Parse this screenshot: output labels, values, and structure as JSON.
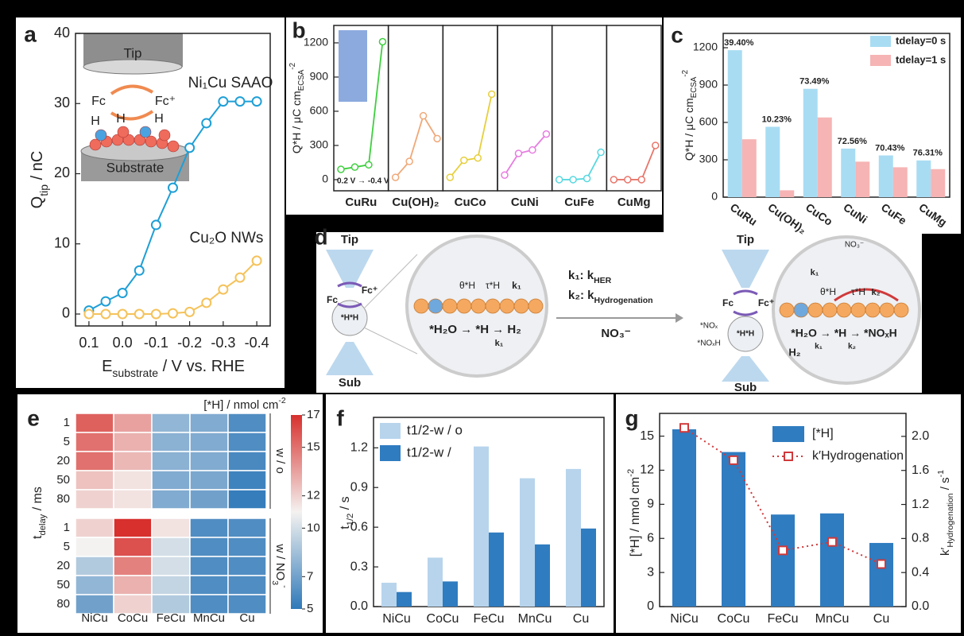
{
  "panel_labels": [
    "a",
    "b",
    "c",
    "d",
    "e",
    "f",
    "g"
  ],
  "chart_data": [
    {
      "type": "line",
      "xlabel": [
        {
          "t": "E"
        },
        {
          "t": "substrate",
          "sub": true
        },
        {
          "t": " / V vs. RHE"
        }
      ],
      "ylabel": [
        {
          "t": "Q"
        },
        {
          "t": "tip",
          "sub": true
        },
        {
          "t": " / nC"
        }
      ],
      "x": [
        0.1,
        0.05,
        0,
        -0.05,
        -0.1,
        -0.15,
        -0.2,
        -0.25,
        -0.3,
        -0.35,
        -0.4
      ],
      "series": [
        {
          "name": "Ni₁Cu SAAO",
          "color": "#1e9fd6",
          "values": [
            0.5,
            1.8,
            3,
            6.2,
            12.7,
            18,
            23.7,
            27.2,
            30.3,
            30.3,
            30.3
          ]
        },
        {
          "name": "Cu₂O NWs",
          "color": "#f5c25a",
          "values": [
            0,
            0,
            0,
            0,
            0,
            0.1,
            0.3,
            1.6,
            3.5,
            5.2,
            7.6
          ]
        }
      ],
      "xlim": [
        0.14,
        -0.44
      ],
      "ylim": [
        -1.7,
        40
      ],
      "xticks": [
        0.1,
        {
          "value": 0,
          "label": "0.0"
        },
        -0.1,
        -0.2,
        -0.3,
        -0.4
      ],
      "yticks": [
        0,
        10,
        20,
        30,
        40
      ],
      "inset_labels": [
        "Tip",
        "Fc",
        "Fc⁺",
        "H",
        "H",
        "H",
        "Substrate"
      ]
    },
    {
      "type": "small_multiples",
      "ylabel": [
        {
          "t": "Q*H / μC cm"
        },
        {
          "t": "ECSA",
          "sub": true
        },
        {
          "t": "-2",
          "sup": true
        }
      ],
      "ylim": [
        -98,
        1353
      ],
      "yticks": [
        0,
        300,
        600,
        900,
        1200
      ],
      "xlim": [
        -0.4,
        3.3
      ],
      "series": [
        {
          "name": "CuRu",
          "color": "#3fcf3f",
          "values": [
            90,
            110,
            130,
            1210
          ]
        },
        {
          "name": "Cu(OH)₂",
          "color": "#f0a878",
          "values": [
            20,
            160,
            560,
            360
          ]
        },
        {
          "name": "CuCo",
          "color": "#e6cf3c",
          "values": [
            20,
            170,
            190,
            750
          ]
        },
        {
          "name": "CuNi",
          "color": "#e77de0",
          "values": [
            40,
            230,
            260,
            400
          ]
        },
        {
          "name": "CuFe",
          "color": "#58d8e0",
          "values": [
            0,
            0,
            10,
            240
          ]
        },
        {
          "name": "CuMg",
          "color": "#e8756a",
          "values": [
            0,
            0,
            0,
            300
          ]
        }
      ],
      "annotation": "0.2 V → -0.4 V"
    },
    {
      "type": "bar",
      "categories": [
        "CuRu",
        "Cu(OH)₂",
        "CuCo",
        "CuNi",
        "CuFe",
        "CuMg"
      ],
      "ylabel": [
        {
          "t": "Q*H / μC cm"
        },
        {
          "t": "ECSA",
          "sub": true
        },
        {
          "t": "-2",
          "sup": true
        }
      ],
      "series": [
        {
          "name": "tdelay=0 s",
          "color": "#a8dcf3",
          "values": [
            1180,
            565,
            870,
            390,
            335,
            295
          ]
        },
        {
          "name": "tdelay=1 s",
          "color": "#f6b4b4",
          "values": [
            465,
            55,
            640,
            285,
            240,
            225
          ]
        }
      ],
      "annotations": [
        "39.40%",
        "10.23%",
        "73.49%",
        "72.56%",
        "70.43%",
        "76.31%"
      ],
      "ylim": [
        0,
        1315
      ],
      "yticks": [
        0,
        300,
        600,
        900,
        1200
      ],
      "legend": "upper right"
    },
    {
      "type": "heatmap",
      "columns": [
        "NiCu",
        "CoCu",
        "FeCu",
        "MnCu",
        "Cu"
      ],
      "rows": [
        "1",
        "5",
        "20",
        "50",
        "80"
      ],
      "blocks": [
        {
          "label": "w / o",
          "values": [
            [
              15.5,
              13.5,
              8,
              7.5,
              6
            ],
            [
              15,
              13,
              7.8,
              7.5,
              6
            ],
            [
              15,
              12.8,
              7.8,
              7.5,
              5.8
            ],
            [
              12.5,
              11.5,
              7.5,
              7.3,
              5.5
            ],
            [
              12,
              11.5,
              7.5,
              7,
              5.2
            ]
          ]
        },
        {
          "label": [
            {
              "t": "w / NO"
            },
            {
              "t": "3",
              "sub": true
            },
            {
              "t": "-",
              "sup": true
            }
          ],
          "values": [
            [
              12,
              17,
              11.5,
              6,
              6
            ],
            [
              11,
              16,
              10,
              6,
              6
            ],
            [
              9,
              14.5,
              10,
              6,
              6
            ],
            [
              8,
              13,
              9.5,
              6,
              6
            ],
            [
              7,
              12,
              9,
              6,
              6
            ]
          ]
        }
      ],
      "ylabel": [
        {
          "t": "t"
        },
        {
          "t": "delay",
          "sub": true
        },
        {
          "t": " / ms"
        }
      ],
      "colorbar_label": [
        {
          "t": "[*H] / nmol cm"
        },
        {
          "t": "-2",
          "sup": true
        }
      ],
      "clim": [
        5,
        17
      ],
      "cticks": [
        5,
        7,
        10,
        12,
        15,
        17
      ],
      "colormap": [
        "#2f79b9",
        "#f4f2f0",
        "#d7302d"
      ]
    },
    {
      "type": "bar",
      "categories": [
        "NiCu",
        "CoCu",
        "FeCu",
        "MnCu",
        "Cu"
      ],
      "ylabel": [
        {
          "t": "t"
        },
        {
          "t": "1/2",
          "sub": true
        },
        {
          "t": " / s"
        }
      ],
      "series": [
        {
          "name": "t1/2-w / o",
          "color": "#b7d4ec",
          "values": [
            0.18,
            0.37,
            1.21,
            0.97,
            1.04
          ]
        },
        {
          "name": "t1/2-w /",
          "color": "#2f7cc0",
          "values": [
            0.11,
            0.19,
            0.56,
            0.47,
            0.59
          ]
        }
      ],
      "ylim": [
        0,
        1.43
      ],
      "yticks": [
        {
          "value": 0,
          "label": "0.0"
        },
        0.3,
        0.6,
        0.9,
        1.2
      ],
      "legend": "upper left"
    },
    {
      "type": "bar_line",
      "categories": [
        "NiCu",
        "CoCu",
        "FeCu",
        "MnCu",
        "Cu"
      ],
      "ylabel": [
        {
          "t": "[*H] / nmol cm"
        },
        {
          "t": "-2",
          "sup": true
        }
      ],
      "y2label": [
        {
          "t": "k′"
        },
        {
          "t": "Hydrogenation",
          "sub": true
        },
        {
          "t": " / s"
        },
        {
          "t": "-1",
          "sup": true
        }
      ],
      "series": [
        {
          "name": "[*H]",
          "color": "#2f7cc0",
          "values": [
            15.6,
            13.6,
            8.1,
            8.2,
            5.6
          ]
        },
        {
          "name": "k′Hydrogenation",
          "color": "#d0393b",
          "values": [
            2.1,
            1.72,
            0.66,
            0.76,
            0.5
          ],
          "axis": "y2"
        }
      ],
      "ylim": [
        0,
        17
      ],
      "yticks": [
        0,
        3,
        6,
        9,
        12,
        15
      ],
      "y2lim": [
        0,
        2.27
      ],
      "y2ticks": [
        {
          "value": 0,
          "label": "0.0"
        },
        0.4,
        0.8,
        1.2,
        1.6,
        {
          "value": 2,
          "label": "2.0"
        }
      ],
      "legend": "upper right"
    }
  ],
  "diagram_d": {
    "left": {
      "tip": "Tip",
      "fc": "Fc",
      "fc_plus": "Fc⁺",
      "hh": "*H*H",
      "sub": "Sub",
      "theta": "θ*H",
      "tau": "τ*H",
      "k": "k₁",
      "reaction": "*H₂O → *H → H₂",
      "k_under": "k₁"
    },
    "middle": {
      "k1": [
        {
          "t": "k₁: k"
        },
        {
          "t": "HER",
          "sub": true
        }
      ],
      "k2": [
        {
          "t": "k₂: k"
        },
        {
          "t": "Hydrogenation",
          "sub": true
        }
      ],
      "anion": "NO₃⁻"
    },
    "right": {
      "tip": "Tip",
      "fc": "Fc",
      "fc_plus": "Fc⁺",
      "hh": "*H*H",
      "sub": "Sub",
      "nox": "*NOₓ",
      "noxh": "*NOₓH",
      "anion": "NO₃⁻",
      "theta": "θ*H",
      "tau": "τ*H",
      "k1": "k₁",
      "k2": "k₂",
      "reaction": "*H₂O → *H → *NOₓH",
      "h2": "H₂",
      "k1b": "k₁",
      "k2b": "k₂"
    }
  }
}
